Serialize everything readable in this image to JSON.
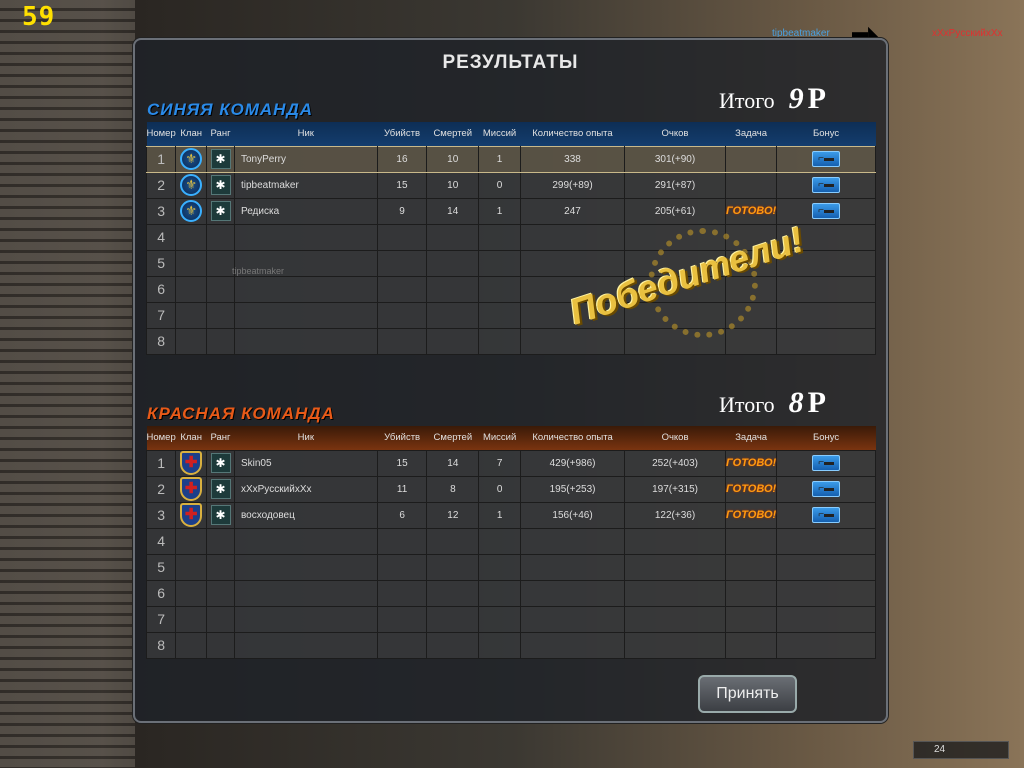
{
  "hud": {
    "fps": "59",
    "ammo": "24",
    "killfeed": {
      "killer": "tipbeatmaker",
      "victim": "xXxPyccкийxXx",
      "weapon_icon": "rifle-icon"
    }
  },
  "title": "РЕЗУЛЬТАТЫ",
  "columns": [
    "Номер",
    "Клан",
    "Ранг",
    "Ник",
    "Убийств",
    "Смертей",
    "Миссий",
    "Количество опыта",
    "Очков",
    "Задача",
    "Бонус"
  ],
  "blue": {
    "name": "СИНЯЯ КОМАНДА",
    "total_label": "Итого",
    "total": "9",
    "total_unit": "P",
    "color": "#1e6ec8",
    "rows": [
      {
        "n": "1",
        "nick": "TonyPerry",
        "kills": "16",
        "deaths": "10",
        "missions": "1",
        "xp": "338",
        "points": "301(+90)",
        "task": "",
        "highlight": true
      },
      {
        "n": "2",
        "nick": "tipbeatmaker",
        "kills": "15",
        "deaths": "10",
        "missions": "0",
        "xp": "299(+89)",
        "points": "291(+87)",
        "task": ""
      },
      {
        "n": "3",
        "nick": "Редиска",
        "kills": "9",
        "deaths": "14",
        "missions": "1",
        "xp": "247",
        "points": "205(+61)",
        "task": "ГОТОВО!"
      }
    ],
    "empty": [
      "4",
      "5",
      "6",
      "7",
      "8"
    ],
    "ghost_label": "tipbeatmaker"
  },
  "red": {
    "name": "КРАСНАЯ КОМАНДА",
    "total_label": "Итого",
    "total": "8",
    "total_unit": "P",
    "color": "#d84a10",
    "rows": [
      {
        "n": "1",
        "nick": "Skin05",
        "kills": "15",
        "deaths": "14",
        "missions": "7",
        "xp": "429(+986)",
        "points": "252(+403)",
        "task": "ГОТОВО!"
      },
      {
        "n": "2",
        "nick": "xXxPyccкийxXx",
        "kills": "11",
        "deaths": "8",
        "missions": "0",
        "xp": "195(+253)",
        "points": "197(+315)",
        "task": "ГОТОВО!"
      },
      {
        "n": "3",
        "nick": "восходовец",
        "kills": "6",
        "deaths": "12",
        "missions": "1",
        "xp": "156(+46)",
        "points": "122(+36)",
        "task": "ГОТОВО!"
      }
    ],
    "empty": [
      "4",
      "5",
      "6",
      "7",
      "8"
    ]
  },
  "winner_stamp": "Победители!",
  "accept_button": "Принять"
}
